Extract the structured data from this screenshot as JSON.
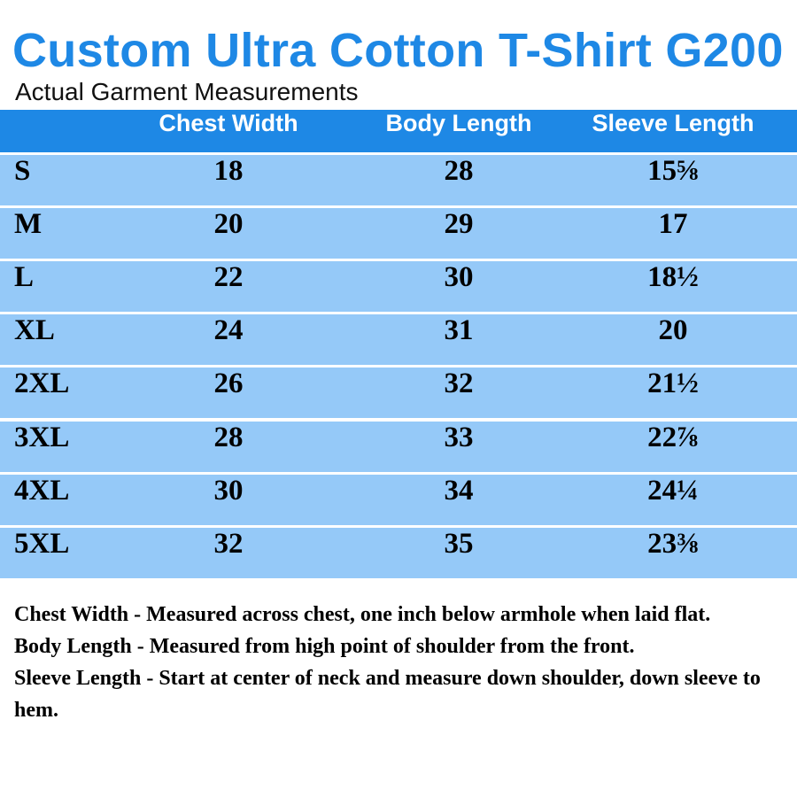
{
  "title": "Custom Ultra Cotton T-Shirt G200",
  "subtitle": "Actual Garment Measurements",
  "headers": [
    "Chest Width",
    "Body Length",
    "Sleeve Length"
  ],
  "rows": [
    {
      "size": "S",
      "chest": "18",
      "body": "28",
      "sleeve": "15⅝"
    },
    {
      "size": "M",
      "chest": "20",
      "body": "29",
      "sleeve": "17"
    },
    {
      "size": "L",
      "chest": "22",
      "body": "30",
      "sleeve": "18½"
    },
    {
      "size": "XL",
      "chest": "24",
      "body": "31",
      "sleeve": "20"
    },
    {
      "size": "2XL",
      "chest": "26",
      "body": "32",
      "sleeve": "21½"
    },
    {
      "size": "3XL",
      "chest": "28",
      "body": "33",
      "sleeve": "22⅞"
    },
    {
      "size": "4XL",
      "chest": "30",
      "body": "34",
      "sleeve": "24¼"
    },
    {
      "size": "5XL",
      "chest": "32",
      "body": "35",
      "sleeve": "23⅜"
    }
  ],
  "notes": [
    "Chest Width - Measured across chest, one inch below armhole when laid flat.",
    "Body Length - Measured from high point of shoulder from the front.",
    "Sleeve Length - Start at center of neck and measure down shoulder, down sleeve to hem."
  ],
  "colors": {
    "accent": "#1e88e5",
    "row": "#95c9f8"
  }
}
